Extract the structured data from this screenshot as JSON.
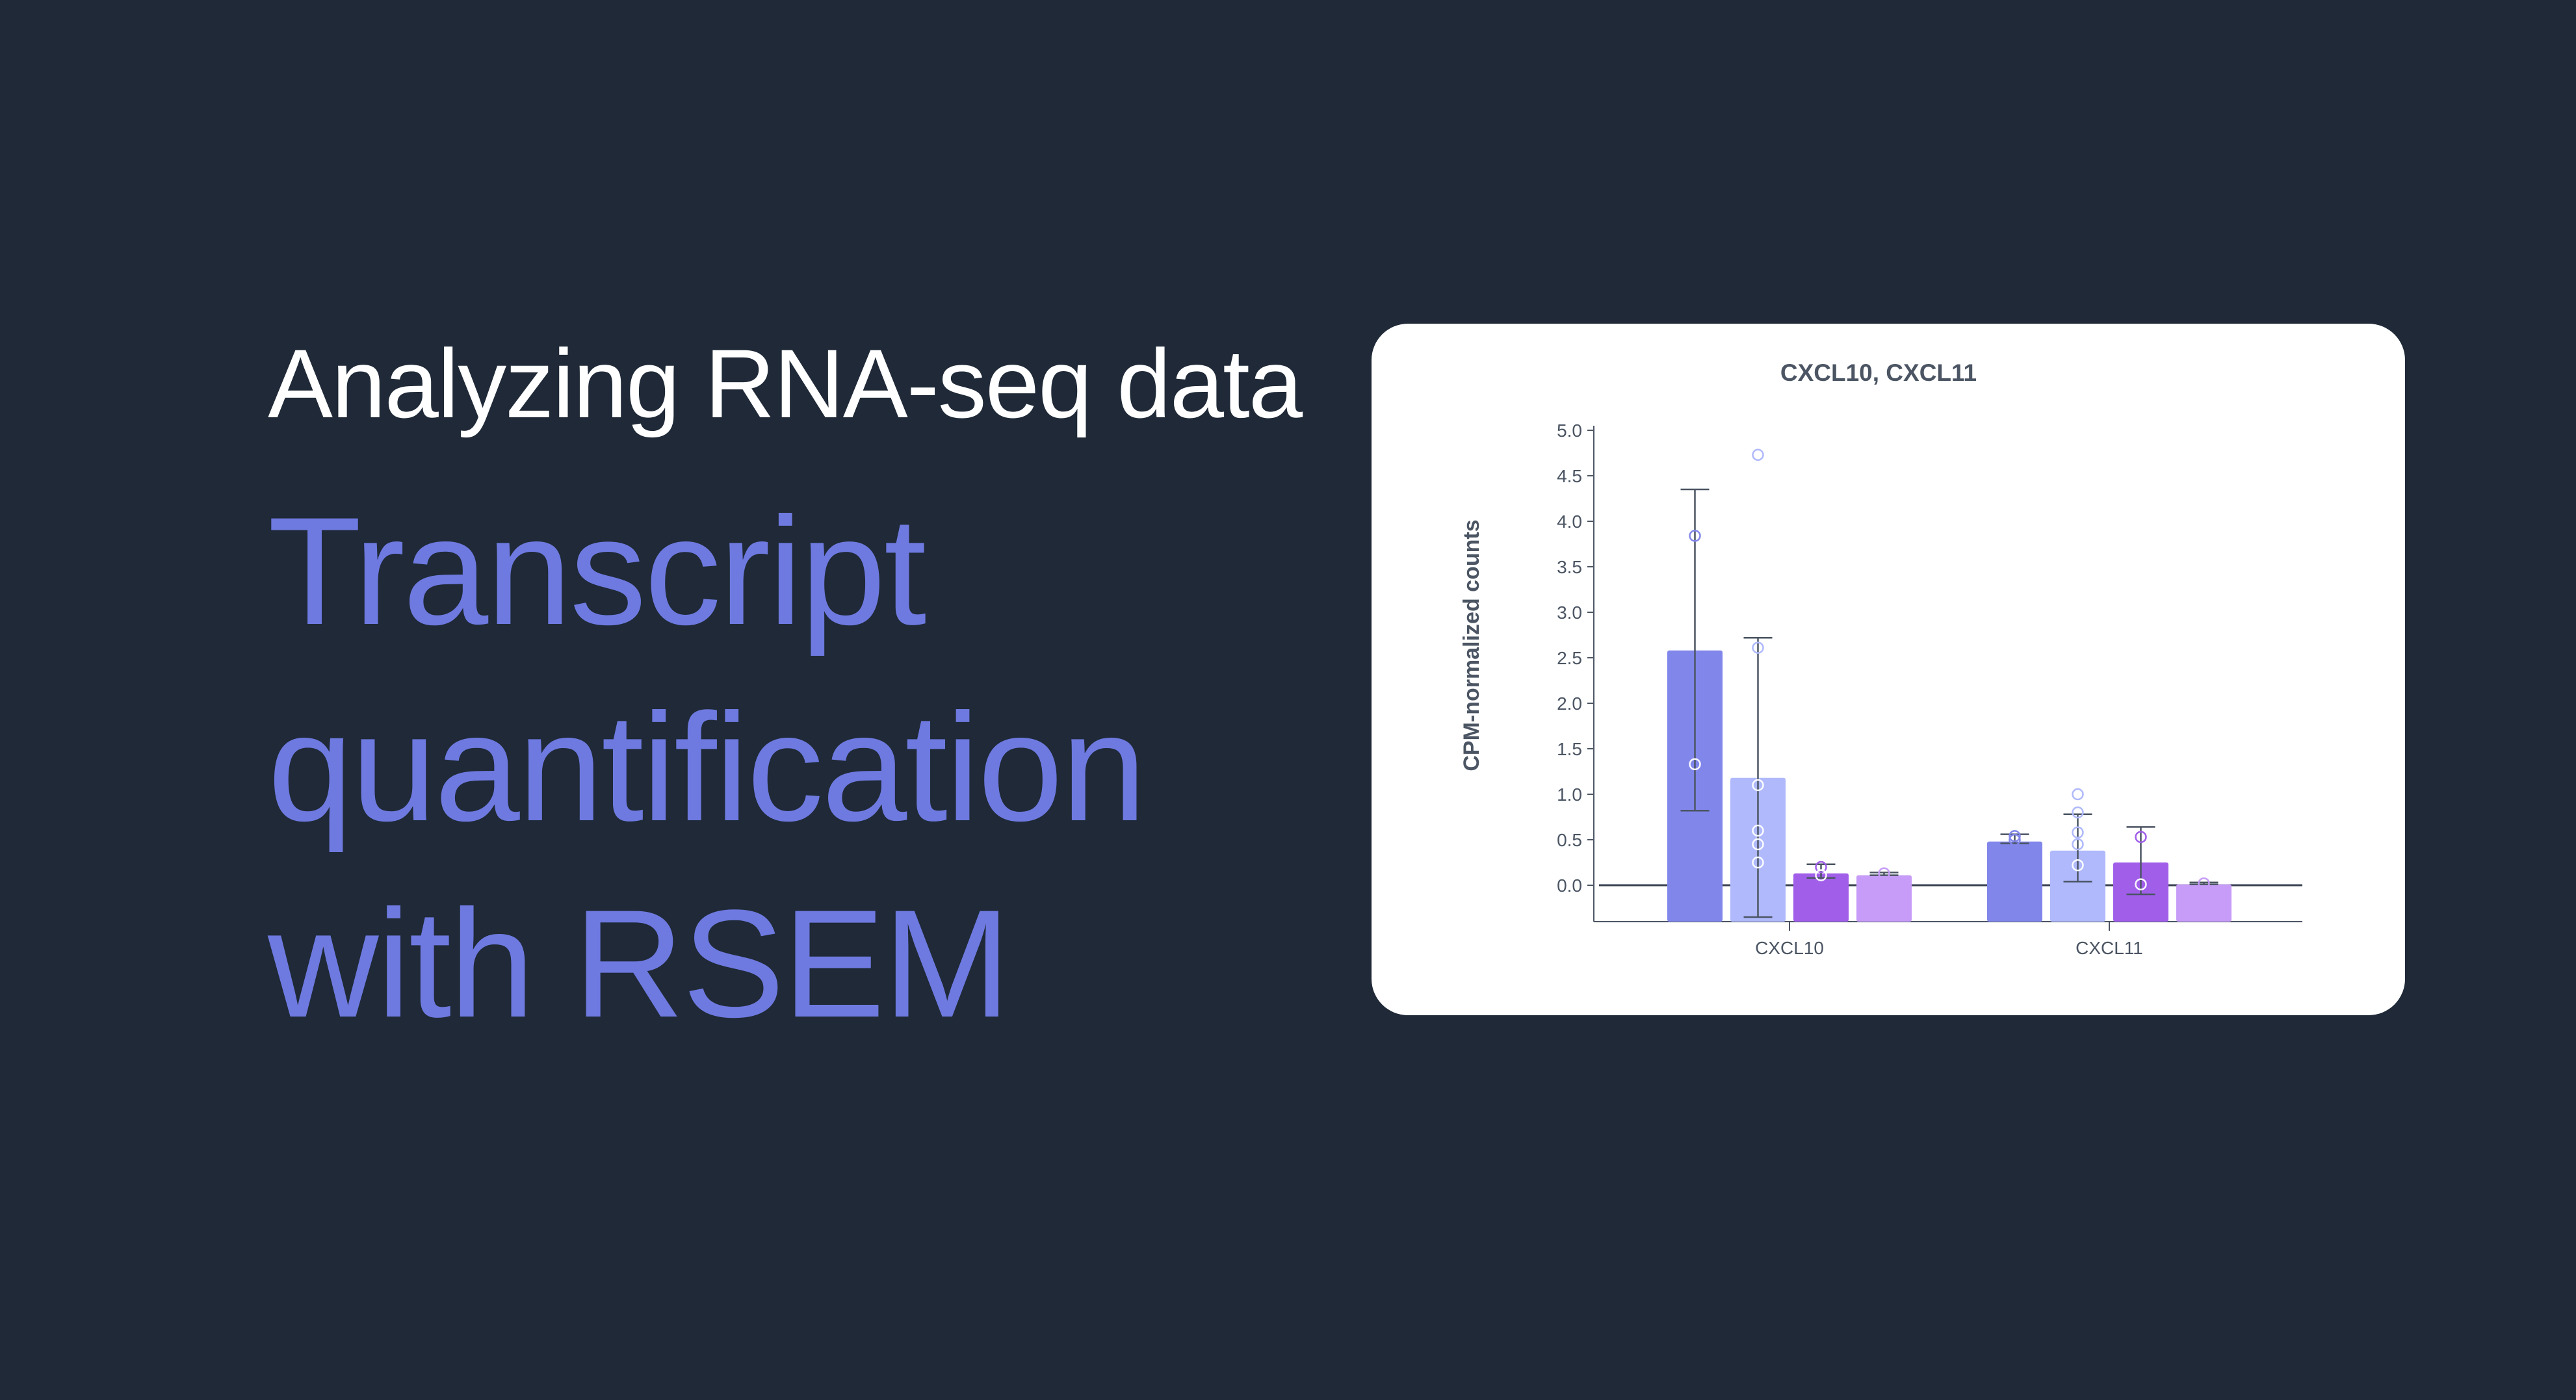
{
  "hero": {
    "eyebrow": "Analyzing RNA-seq data",
    "headline_lines": [
      "Transcript",
      "quantification",
      "with RSEM"
    ],
    "eyebrow_color": "#ffffff",
    "headline_color": "#6e7ae0",
    "background_color": "#1f2937"
  },
  "chart_data": {
    "type": "bar",
    "title": "CXCL10, CXCL11",
    "xlabel": "",
    "ylabel": "CPM-normalized counts",
    "categories": [
      "CXCL10",
      "CXCL11"
    ],
    "yticks": [
      0.0,
      0.5,
      1.0,
      1.5,
      2.0,
      2.5,
      3.0,
      3.5,
      4.0,
      4.5,
      5.0
    ],
    "ylim": [
      -0.4,
      5.1
    ],
    "legend": "none",
    "grid": false,
    "series": [
      {
        "color": "#8186ea",
        "values": [
          2.58,
          0.48
        ],
        "error_bars": [
          [
            0.82,
            4.35
          ],
          [
            0.46,
            0.56
          ]
        ],
        "points": [
          [
            3.84,
            1.33
          ],
          [
            0.5,
            0.54
          ]
        ]
      },
      {
        "color": "#afb9fb",
        "values": [
          1.18,
          0.38
        ],
        "error_bars": [
          [
            -0.35,
            2.72
          ],
          [
            0.04,
            0.78
          ]
        ],
        "points": [
          [
            4.73,
            2.61,
            1.1,
            0.6,
            0.45,
            0.25
          ],
          [
            1.0,
            0.8,
            0.58,
            0.45,
            0.22
          ]
        ]
      },
      {
        "color": "#a05ee9",
        "values": [
          0.13,
          0.25
        ],
        "error_bars": [
          [
            0.08,
            0.23
          ],
          [
            -0.1,
            0.64
          ]
        ],
        "points": [
          [
            0.2,
            0.11
          ],
          [
            0.53,
            0.01
          ]
        ]
      },
      {
        "color": "#c79cf8",
        "values": [
          0.11,
          0.01
        ],
        "error_bars": [
          [
            0.11,
            0.14
          ],
          [
            0.01,
            0.03
          ]
        ],
        "points": [
          [
            0.13
          ],
          [
            0.02
          ]
        ]
      }
    ]
  }
}
